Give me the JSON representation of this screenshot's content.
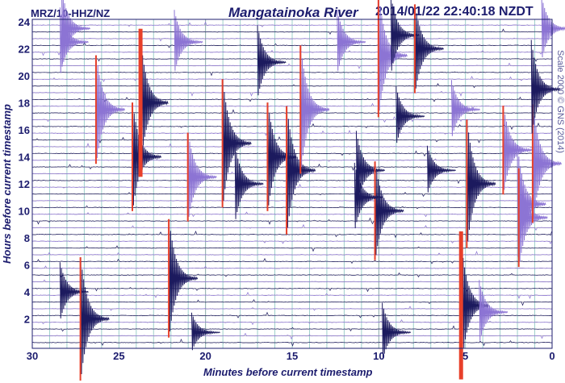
{
  "header": {
    "station": "MRZ/10-HHZ/NZ",
    "title": "Mangatainoka River",
    "timestamp": "2014/01/22 22:40:18 NZDT"
  },
  "side_note": "Scale 2000 © GNS (2014)",
  "chart_data": {
    "type": "line",
    "title": "Mangatainoka River",
    "xlabel": "Minutes before current timestamp",
    "ylabel": "Hours before current timestamp",
    "xlim": [
      30,
      0
    ],
    "ylim": [
      0,
      24
    ],
    "xticks": [
      "30",
      "25",
      "20",
      "15",
      "10",
      "5",
      "0"
    ],
    "yticks": [
      "2",
      "4",
      "6",
      "8",
      "10",
      "12",
      "14",
      "16",
      "18",
      "20",
      "22",
      "24"
    ],
    "trace_interval_hours": 0.5,
    "grid": true,
    "colors": {
      "trace_a": "#1c1a5e",
      "trace_b": "#8c74d4",
      "clipped": "#e8402a",
      "grid_v": "#9fd0cc",
      "grid_h": "#9a9a9a",
      "axis": "#1c1c6e"
    },
    "events": [
      {
        "minute": 28.3,
        "hour": 23.5,
        "amp": 1.6
      },
      {
        "minute": 28.4,
        "hour": 22.5,
        "amp": 1.4
      },
      {
        "minute": 28.4,
        "hour": 4.0,
        "amp": 1.2
      },
      {
        "minute": 26.3,
        "hour": 17.5,
        "amp": 2.2,
        "clipped": true
      },
      {
        "minute": 27.2,
        "hour": 2.0,
        "amp": 2.5,
        "clipped": true
      },
      {
        "minute": 24.2,
        "hour": 14.0,
        "amp": 2.2,
        "clipped": true
      },
      {
        "minute": 23.8,
        "hour": 18.0,
        "amp": 3.0,
        "clipped": true
      },
      {
        "minute": 22.1,
        "hour": 5.0,
        "amp": 2.4,
        "clipped": true
      },
      {
        "minute": 21.8,
        "hour": 22.5,
        "amp": 1.3
      },
      {
        "minute": 21.0,
        "hour": 12.5,
        "amp": 1.8,
        "clipped": true
      },
      {
        "minute": 19.0,
        "hour": 15.0,
        "amp": 2.6,
        "clipped": true
      },
      {
        "minute": 18.3,
        "hour": 12.0,
        "amp": 1.6
      },
      {
        "minute": 17.0,
        "hour": 21.0,
        "amp": 1.5
      },
      {
        "minute": 16.4,
        "hour": 14.0,
        "amp": 2.2,
        "clipped": true
      },
      {
        "minute": 15.3,
        "hour": 13.0,
        "amp": 2.6,
        "clipped": true
      },
      {
        "minute": 14.5,
        "hour": 17.5,
        "amp": 2.6,
        "clipped": true
      },
      {
        "minute": 12.4,
        "hour": 22.5,
        "amp": 1.3
      },
      {
        "minute": 11.3,
        "hour": 13.0,
        "amp": 1.6
      },
      {
        "minute": 10.2,
        "hour": 10.0,
        "amp": 2.0,
        "clipped": true
      },
      {
        "minute": 10.0,
        "hour": 21.5,
        "amp": 2.5,
        "clipped": true
      },
      {
        "minute": 9.3,
        "hour": 23.0,
        "amp": 1.6
      },
      {
        "minute": 9.0,
        "hour": 17.0,
        "amp": 1.2
      },
      {
        "minute": 7.9,
        "hour": 22.0,
        "amp": 1.8,
        "clipped": true
      },
      {
        "minute": 5.3,
        "hour": 3.0,
        "amp": 3.0,
        "clipped": true
      },
      {
        "minute": 4.9,
        "hour": 12.0,
        "amp": 2.6,
        "clipped": true
      },
      {
        "minute": 5.8,
        "hour": 17.5,
        "amp": 1.2
      },
      {
        "minute": 2.8,
        "hour": 14.5,
        "amp": 1.8,
        "clipped": true
      },
      {
        "minute": 2.0,
        "hour": 10.5,
        "amp": 2.4
      },
      {
        "minute": 1.9,
        "hour": 9.5,
        "amp": 2.0,
        "clipped": true
      },
      {
        "minute": 1.1,
        "hour": 13.5,
        "amp": 2.4,
        "clipped": true
      },
      {
        "minute": 1.2,
        "hour": 19.0,
        "amp": 2.0
      },
      {
        "minute": 0.6,
        "hour": 23.5,
        "amp": 1.3
      },
      {
        "minute": 4.2,
        "hour": 2.5,
        "amp": 1.3
      },
      {
        "minute": 9.8,
        "hour": 1.0,
        "amp": 1.2
      },
      {
        "minute": 11.4,
        "hour": 11.0,
        "amp": 1.4
      },
      {
        "minute": 7.2,
        "hour": 13.0,
        "amp": 1.0
      },
      {
        "minute": 20.8,
        "hour": 1.0,
        "amp": 0.8
      }
    ]
  }
}
